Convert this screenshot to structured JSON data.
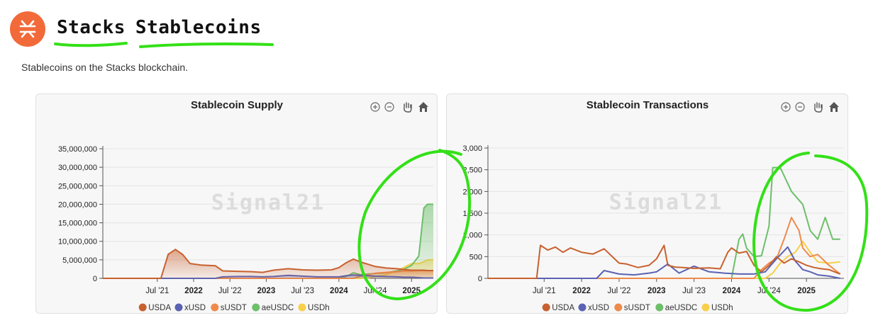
{
  "page": {
    "title_word1": "Stacks",
    "title_word2": "Stablecoins",
    "subtitle": "Stablecoins on the Stacks blockchain.",
    "logo_icon": "stacks-logo-icon",
    "watermark": "Signal21"
  },
  "toolbar_icons": [
    "zoom-in-icon",
    "zoom-out-icon",
    "pan-hand-icon",
    "home-icon"
  ],
  "colors": {
    "USDA": "#c8612f",
    "xUSD": "#5b62b3",
    "sUSDT": "#ef8a4a",
    "aeUSDC": "#6dbf6a",
    "USDh": "#f7cf4a",
    "annotation": "#33e017"
  },
  "chart_data": [
    {
      "type": "area",
      "title": "Stablecoin Supply",
      "ylim": [
        0,
        35000000
      ],
      "y_ticks": [
        "0",
        "5,000,000",
        "10,000,000",
        "15,000,000",
        "20,000,000",
        "25,000,000",
        "30,000,000",
        "35,000,000"
      ],
      "x_ticks": [
        "Jul '21",
        "2022",
        "Jul '22",
        "2023",
        "Jul '23",
        "2024",
        "Jul '24",
        "2025"
      ],
      "x_tick_pos": [
        2021.5,
        2022.0,
        2022.5,
        2023.0,
        2023.5,
        2024.0,
        2024.5,
        2025.0
      ],
      "xlim": [
        2020.75,
        2025.3
      ],
      "legend": "bottom",
      "grid": true,
      "x": [
        2020.75,
        2021.05,
        2021.1,
        2021.35,
        2021.4,
        2021.55,
        2021.65,
        2021.75,
        2021.85,
        2021.95,
        2022.1,
        2022.3,
        2022.4,
        2022.6,
        2022.8,
        2022.95,
        2023.1,
        2023.3,
        2023.5,
        2023.7,
        2023.9,
        2024.0,
        2024.1,
        2024.2,
        2024.3,
        2024.4,
        2024.5,
        2024.65,
        2024.8,
        2024.9,
        2025.0,
        2025.1,
        2025.17,
        2025.22,
        2025.3
      ],
      "series": [
        {
          "name": "USDA",
          "values": [
            0,
            0,
            0,
            0,
            0,
            0,
            6500000,
            7800000,
            6400000,
            4000000,
            3600000,
            3400000,
            2000000,
            1900000,
            1800000,
            1600000,
            2200000,
            2600000,
            2300000,
            2200000,
            2300000,
            2900000,
            4200000,
            5200000,
            4400000,
            3800000,
            3200000,
            2800000,
            2600000,
            2400000,
            2200000,
            2200000,
            2200000,
            2100000,
            2100000
          ]
        },
        {
          "name": "xUSD",
          "values": [
            0,
            0,
            0,
            0,
            0,
            0,
            0,
            0,
            0,
            0,
            0,
            0,
            400000,
            500000,
            500000,
            400000,
            500000,
            800000,
            600000,
            400000,
            400000,
            400000,
            700000,
            900000,
            800000,
            700000,
            600000,
            500000,
            400000,
            300000,
            300000,
            200000,
            100000,
            100000,
            100000
          ]
        },
        {
          "name": "sUSDT",
          "values": [
            0,
            0,
            0,
            0,
            0,
            0,
            0,
            0,
            0,
            0,
            0,
            0,
            0,
            0,
            0,
            0,
            0,
            0,
            0,
            0,
            0,
            0,
            0,
            0,
            600000,
            1000000,
            1400000,
            1600000,
            1800000,
            2000000,
            2000000,
            2100000,
            2100000,
            2100000,
            2100000
          ]
        },
        {
          "name": "aeUSDC",
          "values": [
            0,
            0,
            0,
            0,
            0,
            0,
            0,
            0,
            0,
            0,
            0,
            0,
            0,
            0,
            0,
            0,
            0,
            0,
            0,
            0,
            0,
            0,
            500000,
            1500000,
            1000000,
            1200000,
            1300000,
            1500000,
            2000000,
            2500000,
            3500000,
            6000000,
            19000000,
            20000000,
            20000000
          ]
        },
        {
          "name": "USDh",
          "values": [
            0,
            0,
            0,
            0,
            0,
            0,
            0,
            0,
            0,
            0,
            0,
            0,
            0,
            0,
            0,
            0,
            0,
            0,
            0,
            0,
            0,
            0,
            0,
            0,
            0,
            100000,
            500000,
            1000000,
            2000000,
            3000000,
            4000000,
            4000000,
            4500000,
            5000000,
            5000000
          ]
        }
      ]
    },
    {
      "type": "line",
      "title": "Stablecoin Transactions",
      "ylim": [
        0,
        3000
      ],
      "y_ticks": [
        "0",
        "500",
        "1,000",
        "1,500",
        "2,000",
        "2,500",
        "3,000"
      ],
      "x_ticks": [
        "Jul '21",
        "2022",
        "Jul '22",
        "2023",
        "Jul '23",
        "2024",
        "Jul '24",
        "2025"
      ],
      "x_tick_pos": [
        2021.5,
        2022.0,
        2022.5,
        2023.0,
        2023.5,
        2024.0,
        2024.5,
        2025.0
      ],
      "xlim": [
        2020.75,
        2025.5
      ],
      "legend": "bottom",
      "grid": true,
      "series": [
        {
          "name": "USDA",
          "x": [
            2020.75,
            2021.4,
            2021.45,
            2021.55,
            2021.65,
            2021.75,
            2021.85,
            2022.0,
            2022.15,
            2022.3,
            2022.5,
            2022.6,
            2022.75,
            2022.9,
            2023.0,
            2023.1,
            2023.15,
            2023.25,
            2023.35,
            2023.5,
            2023.7,
            2023.85,
            2023.95,
            2024.0,
            2024.1,
            2024.2,
            2024.3,
            2024.4,
            2024.5,
            2024.6,
            2024.7,
            2024.8,
            2024.9,
            2025.0,
            2025.1,
            2025.2,
            2025.3,
            2025.45
          ],
          "values": [
            0,
            0,
            760,
            650,
            720,
            600,
            700,
            600,
            560,
            680,
            350,
            330,
            250,
            300,
            450,
            760,
            300,
            260,
            250,
            230,
            240,
            220,
            600,
            700,
            580,
            620,
            300,
            150,
            300,
            500,
            350,
            450,
            380,
            300,
            250,
            220,
            200,
            100
          ]
        },
        {
          "name": "xUSD",
          "x": [
            2020.75,
            2022.2,
            2022.3,
            2022.5,
            2022.7,
            2022.9,
            2023.0,
            2023.15,
            2023.3,
            2023.5,
            2023.7,
            2023.9,
            2024.1,
            2024.3,
            2024.45,
            2024.6,
            2024.75,
            2024.85,
            2024.95,
            2025.05,
            2025.15,
            2025.3,
            2025.45
          ],
          "values": [
            0,
            0,
            180,
            100,
            80,
            120,
            150,
            330,
            120,
            280,
            150,
            120,
            100,
            100,
            150,
            450,
            720,
            400,
            200,
            150,
            80,
            50,
            0
          ]
        },
        {
          "name": "sUSDT",
          "x": [
            2020.75,
            2024.3,
            2024.4,
            2024.5,
            2024.6,
            2024.7,
            2024.8,
            2024.9,
            2024.95,
            2025.05,
            2025.15,
            2025.3,
            2025.45
          ],
          "values": [
            0,
            0,
            200,
            350,
            450,
            900,
            1400,
            1100,
            700,
            500,
            550,
            300,
            100
          ]
        },
        {
          "name": "aeUSDC",
          "x": [
            2020.75,
            2024.0,
            2024.1,
            2024.15,
            2024.2,
            2024.3,
            2024.4,
            2024.5,
            2024.55,
            2024.65,
            2024.8,
            2024.95,
            2025.05,
            2025.15,
            2025.25,
            2025.35,
            2025.45
          ],
          "values": [
            0,
            0,
            900,
            1020,
            700,
            500,
            520,
            1200,
            2550,
            2550,
            2000,
            1700,
            1100,
            900,
            1400,
            900,
            900
          ]
        },
        {
          "name": "USDh",
          "x": [
            2020.75,
            2024.45,
            2024.55,
            2024.65,
            2024.75,
            2024.85,
            2024.95,
            2025.05,
            2025.15,
            2025.3,
            2025.45
          ],
          "values": [
            0,
            0,
            120,
            350,
            500,
            600,
            850,
            600,
            380,
            350,
            380
          ]
        }
      ]
    }
  ]
}
